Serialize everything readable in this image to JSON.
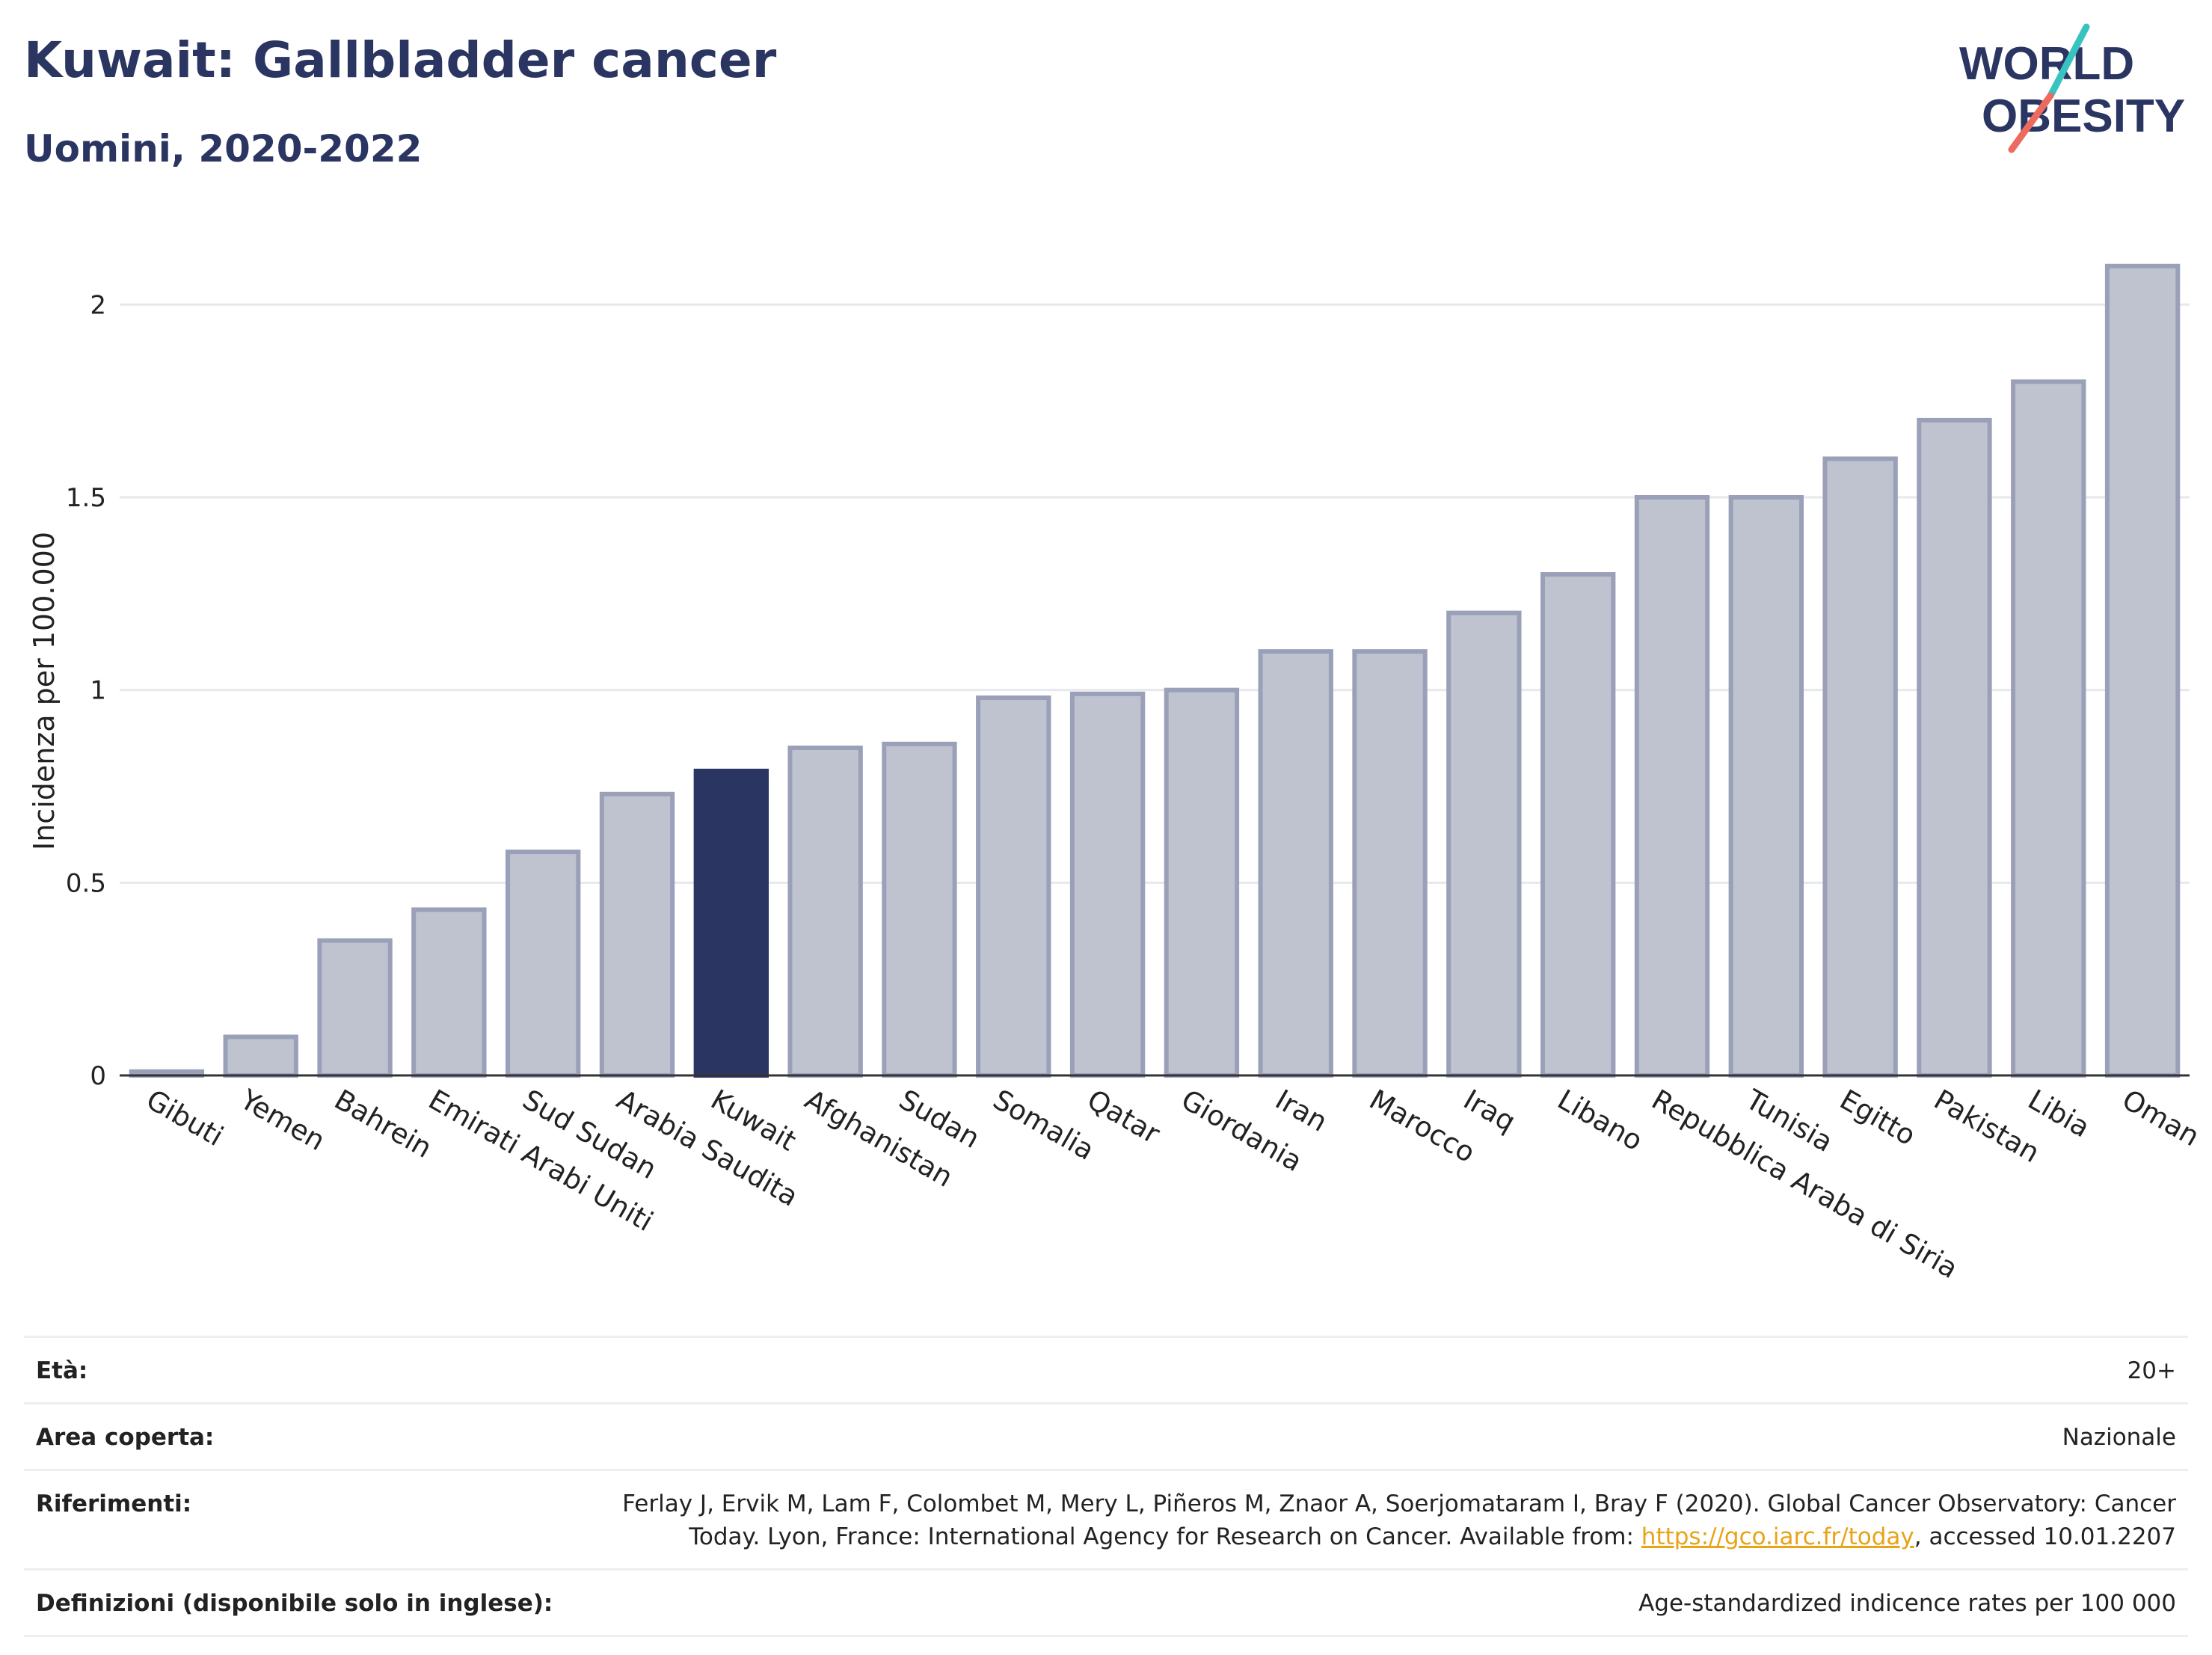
{
  "header": {
    "title": "Kuwait: Gallbladder cancer",
    "subtitle": "Uomini, 2020-2022"
  },
  "logo": {
    "line1": "WORLD",
    "line2": "OBESITY",
    "accent_colors": [
      "#38c3c0",
      "#ec6b5e"
    ]
  },
  "chart_data": {
    "type": "bar",
    "title": "Kuwait: Gallbladder cancer",
    "subtitle": "Uomini, 2020-2022",
    "xlabel": "",
    "ylabel": "Incidenza per 100.000",
    "ylim": [
      0,
      2.15
    ],
    "yticks": [
      0,
      0.5,
      1,
      1.5,
      2
    ],
    "ytick_labels": [
      "0",
      "0.5",
      "1",
      "1.5",
      "2"
    ],
    "grid": true,
    "categories": [
      "Gibuti",
      "Yemen",
      "Bahrein",
      "Emirati Arabi Uniti",
      "Sud Sudan",
      "Arabia Saudita",
      "Kuwait",
      "Afghanistan",
      "Sudan",
      "Somalia",
      "Qatar",
      "Giordania",
      "Iran",
      "Marocco",
      "Iraq",
      "Libano",
      "Repubblica Araba di Siria",
      "Tunisia",
      "Egitto",
      "Pakistan",
      "Libia",
      "Oman"
    ],
    "values": [
      0.01,
      0.1,
      0.35,
      0.43,
      0.58,
      0.73,
      0.79,
      0.85,
      0.86,
      0.98,
      0.99,
      1.0,
      1.1,
      1.1,
      1.2,
      1.3,
      1.5,
      1.5,
      1.6,
      1.7,
      1.8,
      2.1
    ],
    "highlight": "Kuwait",
    "colors": {
      "bar_fill": "#bfc3d0",
      "bar_stroke": "#9aa0b8",
      "highlight": "#2b3562",
      "grid": "#e6e8ee",
      "axis": "#333333"
    }
  },
  "info": {
    "age_label": "Età:",
    "age_value": "20+",
    "area_label": "Area coperta:",
    "area_value": "Nazionale",
    "refs_label": "Riferimenti:",
    "refs_text_1": "Ferlay J, Ervik M, Lam F, Colombet M, Mery L, Piñeros M, Znaor A, Soerjomataram I, Bray F (2020). Global Cancer Observatory: Cancer Today. Lyon, France: International Agency for Research on Cancer. Available from: ",
    "refs_link": "https://gco.iarc.fr/today",
    "refs_text_2": ", accessed 10.01.2207",
    "defs_label": "Definizioni (disponibile solo in inglese):",
    "defs_value": "Age-standardized indicence rates per 100 000"
  }
}
